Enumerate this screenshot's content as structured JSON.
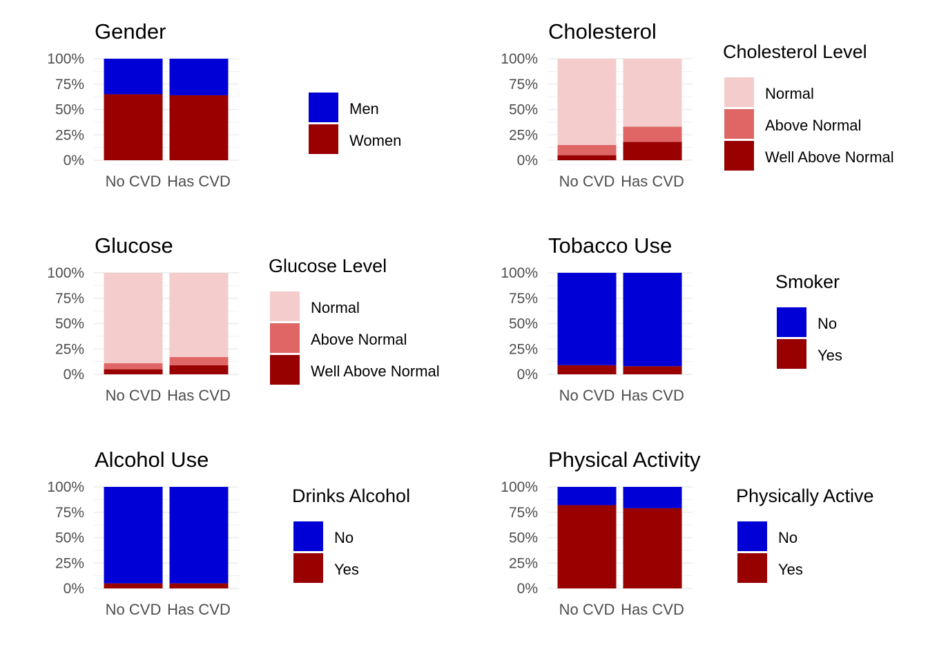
{
  "colors": {
    "blue": "#0000d6",
    "dark_red": "#990000",
    "light_pink": "#f4cccc",
    "mid_red": "#e06666",
    "grid": "#ebebeb",
    "tick_text": "#4d4d4d",
    "text": "#000000"
  },
  "chart_data": [
    {
      "type": "bar",
      "stacked": true,
      "title": "Gender",
      "legend_title": "",
      "categories": [
        "No CVD",
        "Has CVD"
      ],
      "ytick_labels": [
        "0%",
        "25%",
        "50%",
        "75%",
        "100%"
      ],
      "ylim": [
        0,
        100
      ],
      "grid": true,
      "legend_position": "right",
      "series": [
        {
          "name": "Men",
          "color": "#0000d6",
          "values": [
            35,
            36
          ]
        },
        {
          "name": "Women",
          "color": "#990000",
          "values": [
            65,
            64
          ]
        }
      ]
    },
    {
      "type": "bar",
      "stacked": true,
      "title": "Cholesterol",
      "legend_title": "Cholesterol Level",
      "categories": [
        "No CVD",
        "Has CVD"
      ],
      "ytick_labels": [
        "0%",
        "25%",
        "50%",
        "75%",
        "100%"
      ],
      "ylim": [
        0,
        100
      ],
      "grid": true,
      "legend_position": "right",
      "series": [
        {
          "name": "Normal",
          "color": "#f4cccc",
          "values": [
            85,
            67
          ]
        },
        {
          "name": "Above Normal",
          "color": "#e06666",
          "values": [
            10,
            15
          ]
        },
        {
          "name": "Well Above Normal",
          "color": "#990000",
          "values": [
            5,
            18
          ]
        }
      ]
    },
    {
      "type": "bar",
      "stacked": true,
      "title": "Glucose",
      "legend_title": "Glucose Level",
      "categories": [
        "No CVD",
        "Has CVD"
      ],
      "ytick_labels": [
        "0%",
        "25%",
        "50%",
        "75%",
        "100%"
      ],
      "ylim": [
        0,
        100
      ],
      "grid": true,
      "legend_position": "right",
      "series": [
        {
          "name": "Normal",
          "color": "#f4cccc",
          "values": [
            89,
            83
          ]
        },
        {
          "name": "Above Normal",
          "color": "#e06666",
          "values": [
            6,
            8
          ]
        },
        {
          "name": "Well Above Normal",
          "color": "#990000",
          "values": [
            5,
            9
          ]
        }
      ]
    },
    {
      "type": "bar",
      "stacked": true,
      "title": "Tobacco Use",
      "legend_title": "Smoker",
      "categories": [
        "No CVD",
        "Has CVD"
      ],
      "ytick_labels": [
        "0%",
        "25%",
        "50%",
        "75%",
        "100%"
      ],
      "ylim": [
        0,
        100
      ],
      "grid": true,
      "legend_position": "right",
      "series": [
        {
          "name": "No",
          "color": "#0000d6",
          "values": [
            91,
            92
          ]
        },
        {
          "name": "Yes",
          "color": "#990000",
          "values": [
            9,
            8
          ]
        }
      ]
    },
    {
      "type": "bar",
      "stacked": true,
      "title": "Alcohol Use",
      "legend_title": "Drinks Alcohol",
      "categories": [
        "No CVD",
        "Has CVD"
      ],
      "ytick_labels": [
        "0%",
        "25%",
        "50%",
        "75%",
        "100%"
      ],
      "ylim": [
        0,
        100
      ],
      "grid": true,
      "legend_position": "right",
      "series": [
        {
          "name": "No",
          "color": "#0000d6",
          "values": [
            95,
            95
          ]
        },
        {
          "name": "Yes",
          "color": "#990000",
          "values": [
            5,
            5
          ]
        }
      ]
    },
    {
      "type": "bar",
      "stacked": true,
      "title": "Physical Activity",
      "legend_title": "Physically Active",
      "categories": [
        "No CVD",
        "Has CVD"
      ],
      "ytick_labels": [
        "0%",
        "25%",
        "50%",
        "75%",
        "100%"
      ],
      "ylim": [
        0,
        100
      ],
      "grid": true,
      "legend_position": "right",
      "series": [
        {
          "name": "No",
          "color": "#0000d6",
          "values": [
            18,
            21
          ]
        },
        {
          "name": "Yes",
          "color": "#990000",
          "values": [
            82,
            79
          ]
        }
      ]
    }
  ]
}
